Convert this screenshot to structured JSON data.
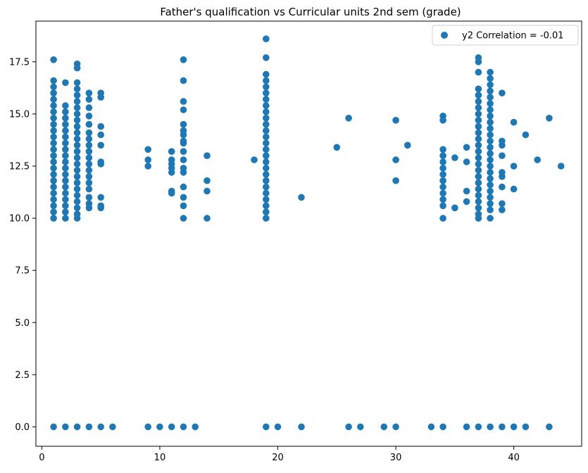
{
  "chart_data": {
    "type": "scatter",
    "title": "Father's qualification vs Curricular units 2nd sem (grade)",
    "xlabel": "",
    "ylabel": "",
    "xlim": [
      -0.5,
      45.75
    ],
    "ylim": [
      -0.93,
      19.45
    ],
    "xticks": [
      0,
      10,
      20,
      30,
      40
    ],
    "yticks": [
      0.0,
      2.5,
      5.0,
      7.5,
      10.0,
      12.5,
      15.0,
      17.5
    ],
    "xtick_labels": [
      "0",
      "10",
      "20",
      "30",
      "40"
    ],
    "ytick_labels": [
      "0.0",
      "2.5",
      "5.0",
      "7.5",
      "10.0",
      "12.5",
      "15.0",
      "17.5"
    ],
    "grid": false,
    "legend": {
      "position": "top-right",
      "entries": [
        "y2 Correlation = -0.01"
      ]
    },
    "marker_color": "#1f77b4",
    "series": [
      {
        "name": "y2 Correlation = -0.01",
        "points": [
          [
            1,
            0
          ],
          [
            2,
            0
          ],
          [
            3,
            0
          ],
          [
            4,
            0
          ],
          [
            5,
            0
          ],
          [
            6,
            0
          ],
          [
            9,
            0
          ],
          [
            10,
            0
          ],
          [
            11,
            0
          ],
          [
            12,
            0
          ],
          [
            13,
            0
          ],
          [
            19,
            0
          ],
          [
            20,
            0
          ],
          [
            22,
            0
          ],
          [
            26,
            0
          ],
          [
            27,
            0
          ],
          [
            29,
            0
          ],
          [
            30,
            0
          ],
          [
            33,
            0
          ],
          [
            34,
            0
          ],
          [
            36,
            0
          ],
          [
            37,
            0
          ],
          [
            38,
            0
          ],
          [
            39,
            0
          ],
          [
            40,
            0
          ],
          [
            41,
            0
          ],
          [
            43,
            0
          ],
          [
            1,
            17.6
          ],
          [
            1,
            16.6
          ],
          [
            1,
            16.3
          ],
          [
            1,
            16.0
          ],
          [
            1,
            15.7
          ],
          [
            1,
            15.4
          ],
          [
            1,
            15.1
          ],
          [
            1,
            14.8
          ],
          [
            1,
            14.5
          ],
          [
            1,
            14.2
          ],
          [
            1,
            13.9
          ],
          [
            1,
            13.6
          ],
          [
            1,
            13.3
          ],
          [
            1,
            13.0
          ],
          [
            1,
            12.7
          ],
          [
            1,
            12.4
          ],
          [
            1,
            12.1
          ],
          [
            1,
            11.8
          ],
          [
            1,
            11.5
          ],
          [
            1,
            11.2
          ],
          [
            1,
            10.9
          ],
          [
            1,
            10.6
          ],
          [
            1,
            10.3
          ],
          [
            1,
            10.0
          ],
          [
            2,
            16.5
          ],
          [
            2,
            15.4
          ],
          [
            2,
            15.1
          ],
          [
            2,
            14.8
          ],
          [
            2,
            14.5
          ],
          [
            2,
            14.2
          ],
          [
            2,
            13.9
          ],
          [
            2,
            13.6
          ],
          [
            2,
            13.3
          ],
          [
            2,
            13.0
          ],
          [
            2,
            12.7
          ],
          [
            2,
            12.4
          ],
          [
            2,
            12.1
          ],
          [
            2,
            11.8
          ],
          [
            2,
            11.5
          ],
          [
            2,
            11.2
          ],
          [
            2,
            10.9
          ],
          [
            2,
            10.6
          ],
          [
            2,
            10.3
          ],
          [
            2,
            10.0
          ],
          [
            3,
            17.4
          ],
          [
            3,
            17.2
          ],
          [
            3,
            16.5
          ],
          [
            3,
            16.2
          ],
          [
            3,
            15.9
          ],
          [
            3,
            15.6
          ],
          [
            3,
            15.3
          ],
          [
            3,
            15.0
          ],
          [
            3,
            14.7
          ],
          [
            3,
            14.4
          ],
          [
            3,
            14.1
          ],
          [
            3,
            13.8
          ],
          [
            3,
            13.5
          ],
          [
            3,
            13.2
          ],
          [
            3,
            12.9
          ],
          [
            3,
            12.6
          ],
          [
            3,
            12.3
          ],
          [
            3,
            12.0
          ],
          [
            3,
            11.7
          ],
          [
            3,
            11.4
          ],
          [
            3,
            11.1
          ],
          [
            3,
            10.8
          ],
          [
            3,
            10.5
          ],
          [
            3,
            10.2
          ],
          [
            3,
            10.0
          ],
          [
            4,
            16.0
          ],
          [
            4,
            15.7
          ],
          [
            4,
            15.3
          ],
          [
            4,
            14.9
          ],
          [
            4,
            14.5
          ],
          [
            4,
            14.1
          ],
          [
            4,
            13.8
          ],
          [
            4,
            13.5
          ],
          [
            4,
            13.2
          ],
          [
            4,
            12.9
          ],
          [
            4,
            12.6
          ],
          [
            4,
            12.3
          ],
          [
            4,
            12.0
          ],
          [
            4,
            11.7
          ],
          [
            4,
            11.4
          ],
          [
            4,
            11.0
          ],
          [
            4,
            10.7
          ],
          [
            4,
            10.5
          ],
          [
            5,
            16.0
          ],
          [
            5,
            15.8
          ],
          [
            5,
            14.4
          ],
          [
            5,
            14.0
          ],
          [
            5,
            13.5
          ],
          [
            5,
            12.7
          ],
          [
            5,
            12.6
          ],
          [
            5,
            11.0
          ],
          [
            5,
            10.6
          ],
          [
            5,
            10.5
          ],
          [
            9,
            13.3
          ],
          [
            9,
            12.8
          ],
          [
            9,
            12.5
          ],
          [
            11,
            13.2
          ],
          [
            11,
            12.8
          ],
          [
            11,
            12.6
          ],
          [
            11,
            12.4
          ],
          [
            11,
            12.2
          ],
          [
            11,
            11.3
          ],
          [
            11,
            11.2
          ],
          [
            12,
            17.6
          ],
          [
            12,
            16.6
          ],
          [
            12,
            15.6
          ],
          [
            12,
            15.2
          ],
          [
            12,
            14.5
          ],
          [
            12,
            14.2
          ],
          [
            12,
            14.0
          ],
          [
            12,
            13.7
          ],
          [
            12,
            13.6
          ],
          [
            12,
            13.2
          ],
          [
            12,
            12.8
          ],
          [
            12,
            12.4
          ],
          [
            12,
            12.2
          ],
          [
            12,
            11.5
          ],
          [
            12,
            11.0
          ],
          [
            12,
            10.6
          ],
          [
            12,
            10.0
          ],
          [
            14,
            13.0
          ],
          [
            14,
            11.8
          ],
          [
            14,
            11.3
          ],
          [
            14,
            10.0
          ],
          [
            18,
            12.8
          ],
          [
            19,
            18.6
          ],
          [
            19,
            17.7
          ],
          [
            19,
            16.9
          ],
          [
            19,
            16.6
          ],
          [
            19,
            16.3
          ],
          [
            19,
            16.0
          ],
          [
            19,
            15.7
          ],
          [
            19,
            15.4
          ],
          [
            19,
            15.1
          ],
          [
            19,
            14.8
          ],
          [
            19,
            14.5
          ],
          [
            19,
            14.2
          ],
          [
            19,
            13.9
          ],
          [
            19,
            13.6
          ],
          [
            19,
            13.3
          ],
          [
            19,
            13.0
          ],
          [
            19,
            12.7
          ],
          [
            19,
            12.4
          ],
          [
            19,
            12.1
          ],
          [
            19,
            11.8
          ],
          [
            19,
            11.5
          ],
          [
            19,
            11.2
          ],
          [
            19,
            10.9
          ],
          [
            19,
            10.6
          ],
          [
            19,
            10.3
          ],
          [
            19,
            10.0
          ],
          [
            22,
            11.0
          ],
          [
            25,
            13.4
          ],
          [
            26,
            14.8
          ],
          [
            30,
            14.7
          ],
          [
            30,
            12.8
          ],
          [
            30,
            11.8
          ],
          [
            31,
            13.5
          ],
          [
            34,
            14.9
          ],
          [
            34,
            14.7
          ],
          [
            34,
            13.3
          ],
          [
            34,
            13.0
          ],
          [
            34,
            12.7
          ],
          [
            34,
            12.4
          ],
          [
            34,
            12.1
          ],
          [
            34,
            11.8
          ],
          [
            34,
            11.5
          ],
          [
            34,
            11.2
          ],
          [
            34,
            10.9
          ],
          [
            34,
            10.6
          ],
          [
            34,
            10.0
          ],
          [
            35,
            12.9
          ],
          [
            35,
            10.5
          ],
          [
            36,
            13.4
          ],
          [
            36,
            12.7
          ],
          [
            36,
            11.3
          ],
          [
            36,
            10.8
          ],
          [
            37,
            17.7
          ],
          [
            37,
            17.5
          ],
          [
            37,
            17.0
          ],
          [
            37,
            16.2
          ],
          [
            37,
            15.9
          ],
          [
            37,
            15.6
          ],
          [
            37,
            15.3
          ],
          [
            37,
            15.0
          ],
          [
            37,
            14.7
          ],
          [
            37,
            14.4
          ],
          [
            37,
            14.1
          ],
          [
            37,
            13.8
          ],
          [
            37,
            13.5
          ],
          [
            37,
            13.2
          ],
          [
            37,
            12.9
          ],
          [
            37,
            12.6
          ],
          [
            37,
            12.3
          ],
          [
            37,
            12.0
          ],
          [
            37,
            11.7
          ],
          [
            37,
            11.4
          ],
          [
            37,
            11.1
          ],
          [
            37,
            10.8
          ],
          [
            37,
            10.5
          ],
          [
            37,
            10.2
          ],
          [
            37,
            10.0
          ],
          [
            38,
            17.0
          ],
          [
            38,
            16.7
          ],
          [
            38,
            16.4
          ],
          [
            38,
            16.1
          ],
          [
            38,
            15.8
          ],
          [
            38,
            15.5
          ],
          [
            38,
            15.2
          ],
          [
            38,
            14.9
          ],
          [
            38,
            14.6
          ],
          [
            38,
            14.3
          ],
          [
            38,
            14.0
          ],
          [
            38,
            13.7
          ],
          [
            38,
            13.4
          ],
          [
            38,
            13.1
          ],
          [
            38,
            12.8
          ],
          [
            38,
            12.5
          ],
          [
            38,
            12.2
          ],
          [
            38,
            11.9
          ],
          [
            38,
            11.6
          ],
          [
            38,
            11.3
          ],
          [
            38,
            11.0
          ],
          [
            38,
            10.7
          ],
          [
            38,
            10.4
          ],
          [
            38,
            10.0
          ],
          [
            39,
            16.0
          ],
          [
            39,
            13.7
          ],
          [
            39,
            13.5
          ],
          [
            39,
            13.0
          ],
          [
            39,
            12.2
          ],
          [
            39,
            12.0
          ],
          [
            39,
            11.5
          ],
          [
            39,
            10.7
          ],
          [
            39,
            10.4
          ],
          [
            40,
            14.6
          ],
          [
            40,
            12.5
          ],
          [
            40,
            11.4
          ],
          [
            41,
            14.0
          ],
          [
            42,
            12.8
          ],
          [
            43,
            14.8
          ],
          [
            44,
            12.5
          ]
        ]
      }
    ]
  }
}
